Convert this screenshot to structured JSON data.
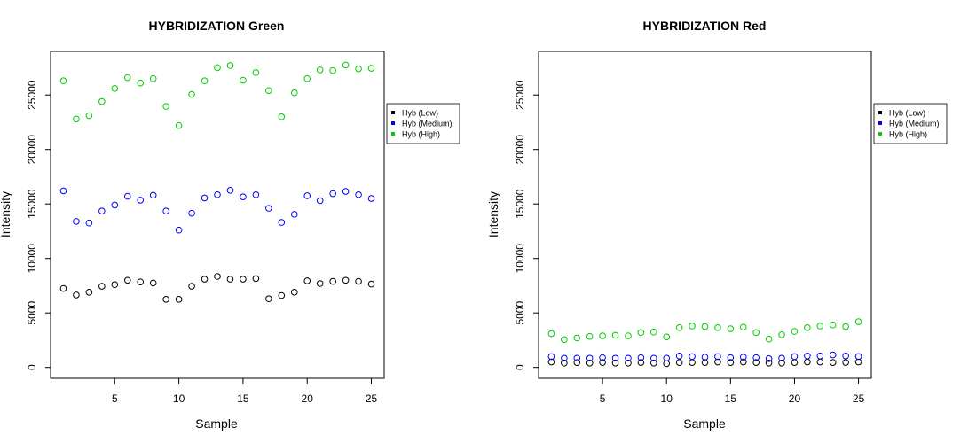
{
  "chart_data": [
    {
      "type": "scatter",
      "title": "HYBRIDIZATION Green",
      "xlabel": "Sample",
      "ylabel": "Intensity",
      "xlim": [
        0,
        26
      ],
      "ylim": [
        -1000,
        29000
      ],
      "xticks": [
        5,
        10,
        15,
        20,
        25
      ],
      "yticks": [
        0,
        5000,
        10000,
        15000,
        20000,
        25000
      ],
      "x": [
        1,
        2,
        3,
        4,
        5,
        6,
        7,
        8,
        9,
        10,
        11,
        12,
        13,
        14,
        15,
        16,
        17,
        18,
        19,
        20,
        21,
        22,
        23,
        24,
        25
      ],
      "legend": "right",
      "series": [
        {
          "name": "Hyb (Low)",
          "color": "#000000",
          "values": [
            7250,
            6650,
            6900,
            7450,
            7600,
            8000,
            7850,
            7750,
            6250,
            6250,
            7450,
            8100,
            8350,
            8100,
            8100,
            8150,
            6300,
            6600,
            6900,
            7950,
            7700,
            7900,
            8000,
            7900,
            7650
          ]
        },
        {
          "name": "Hyb (Medium)",
          "color": "#0000ff",
          "values": [
            16200,
            13400,
            13250,
            14350,
            14900,
            15700,
            15350,
            15800,
            14350,
            12600,
            14150,
            15550,
            15850,
            16250,
            15650,
            15850,
            14600,
            13300,
            14050,
            15750,
            15300,
            15950,
            16150,
            15850,
            15500
          ]
        },
        {
          "name": "Hyb (High)",
          "color": "#00cc00",
          "values": [
            26300,
            22800,
            23100,
            24400,
            25600,
            26600,
            26100,
            26500,
            23950,
            22200,
            25050,
            26300,
            27500,
            27700,
            26350,
            27050,
            25400,
            23000,
            25200,
            26500,
            27300,
            27250,
            27750,
            27400,
            27450
          ]
        }
      ]
    },
    {
      "type": "scatter",
      "title": "HYBRIDIZATION Red",
      "xlabel": "Sample",
      "ylabel": "Intensity",
      "xlim": [
        0,
        26
      ],
      "ylim": [
        -1000,
        29000
      ],
      "xticks": [
        5,
        10,
        15,
        20,
        25
      ],
      "yticks": [
        0,
        5000,
        10000,
        15000,
        20000,
        25000
      ],
      "x": [
        1,
        2,
        3,
        4,
        5,
        6,
        7,
        8,
        9,
        10,
        11,
        12,
        13,
        14,
        15,
        16,
        17,
        18,
        19,
        20,
        21,
        22,
        23,
        24,
        25
      ],
      "legend": "right",
      "series": [
        {
          "name": "Hyb (Low)",
          "color": "#000000",
          "values": [
            500,
            400,
            450,
            400,
            450,
            400,
            400,
            450,
            400,
            350,
            450,
            450,
            450,
            500,
            450,
            500,
            450,
            400,
            400,
            450,
            500,
            500,
            450,
            450,
            500
          ]
        },
        {
          "name": "Hyb (Medium)",
          "color": "#0000ff",
          "values": [
            1000,
            850,
            850,
            850,
            900,
            850,
            850,
            900,
            850,
            850,
            1050,
            1000,
            950,
            1000,
            900,
            950,
            900,
            800,
            850,
            1000,
            1050,
            1050,
            1150,
            1050,
            1000
          ]
        },
        {
          "name": "Hyb (High)",
          "color": "#00cc00",
          "values": [
            3100,
            2550,
            2700,
            2850,
            2900,
            2950,
            2900,
            3200,
            3250,
            2800,
            3650,
            3800,
            3750,
            3650,
            3550,
            3700,
            3200,
            2600,
            3000,
            3300,
            3650,
            3800,
            3900,
            3750,
            4200
          ]
        }
      ]
    }
  ]
}
